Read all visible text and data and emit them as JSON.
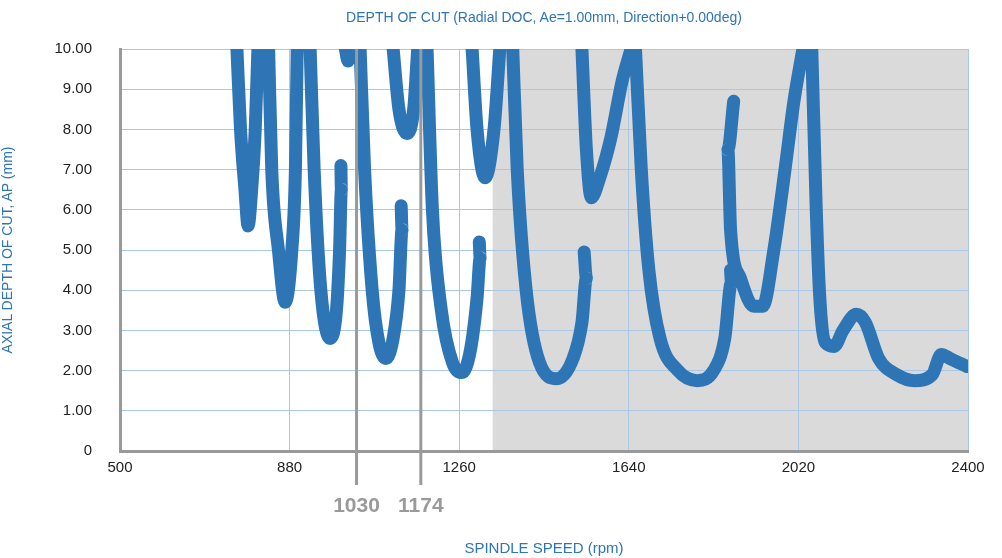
{
  "chart_data": {
    "type": "line",
    "title": "DEPTH OF CUT (Radial DOC, Ae=1.00mm, Direction+0.00deg)",
    "xlabel": "SPINDLE SPEED (rpm)",
    "ylabel": "AXIAL DEPTH OF CUT, AP (mm)",
    "series": [
      {
        "color": "#2e75b6",
        "x": [
          762,
          770,
          780,
          787,
          795,
          803,
          809,
          null,
          833,
          840,
          855,
          870,
          885,
          893,
          897,
          null,
          926,
          935,
          950,
          971,
          985,
          992,
          996,
          995,
          null,
          1005,
          1011,
          1016,
          null,
          1038,
          1048,
          1065,
          1080,
          1096,
          1112,
          1125,
          1132,
          1130,
          null,
          1112,
          1125,
          1143,
          1158,
          1167,
          null,
          1188,
          1200,
          1220,
          1245,
          1266,
          1285,
          1300,
          1307,
          1305,
          null,
          1289,
          1300,
          1318,
          1338,
          1351,
          null,
          1380,
          1390,
          1410,
          1440,
          1479,
          1515,
          1535,
          1545,
          1540,
          null,
          1535,
          1545,
          1556,
          1575,
          1600,
          1625,
          1645,
          null,
          1655,
          1668,
          1685,
          1710,
          1750,
          1793,
          1830,
          1855,
          1870,
          1868,
          null,
          1875,
          1862,
          1868,
          1890,
          1920,
          1940,
          1965,
          1990,
          2010,
          2030,
          null,
          2050,
          2060,
          2068,
          2080,
          2100,
          2120,
          2150,
          2170,
          2200,
          2240,
          2280,
          2320,
          2340,
          2360,
          2398
        ],
        "values": [
          10,
          8,
          6.5,
          5.6,
          6.5,
          8,
          10,
          null,
          10,
          7,
          5,
          3.7,
          5,
          7,
          10,
          null,
          10,
          7,
          4,
          2.8,
          3.5,
          5,
          6.5,
          7.1,
          null,
          10,
          9.7,
          10,
          null,
          10,
          7,
          4,
          2.7,
          2.3,
          2.8,
          4,
          5.5,
          6.1,
          null,
          10,
          8.5,
          7.9,
          8.5,
          10,
          null,
          10,
          6,
          3.5,
          2.2,
          1.95,
          2.5,
          3.8,
          4.8,
          5.2,
          null,
          10,
          8,
          6.8,
          8,
          10,
          null,
          10,
          7,
          4,
          2.2,
          1.8,
          2.3,
          3.2,
          4.3,
          4.95,
          null,
          10,
          7.5,
          6.3,
          6.8,
          7.8,
          9.2,
          10,
          null,
          10,
          7,
          4.5,
          2.8,
          2,
          1.75,
          2,
          2.8,
          4.2,
          4.5,
          null,
          8.7,
          7.5,
          5.5,
          4.3,
          3.6,
          3.6,
          5,
          7,
          8.7,
          10,
          null,
          10,
          6,
          3.8,
          2.7,
          2.6,
          3,
          3.4,
          3.2,
          2.3,
          1.9,
          1.75,
          1.9,
          2.4,
          2.3,
          2.1
        ]
      }
    ],
    "xlim": [
      500,
      2400
    ],
    "xticks": [
      500,
      880,
      1260,
      1640,
      2020,
      2400
    ],
    "ylim": [
      0,
      10
    ],
    "yticks": [
      0,
      {
        "value": 1,
        "label": "1.00"
      },
      {
        "value": 2,
        "label": "2.00"
      },
      {
        "value": 3,
        "label": "3.00"
      },
      {
        "value": 4,
        "label": "4.00"
      },
      {
        "value": 5,
        "label": "5.00"
      },
      {
        "value": 6,
        "label": "6.00"
      },
      {
        "value": 7,
        "label": "7.00"
      },
      {
        "value": 8,
        "label": "8.00"
      },
      {
        "value": 9,
        "label": "9.00"
      },
      {
        "value": 10,
        "label": "10.00"
      }
    ],
    "grid": true,
    "legend": false,
    "bands": [
      {
        "axis": "x",
        "from": 1335,
        "to": 2400,
        "color": "#dadada"
      }
    ],
    "ref_lines": [
      {
        "axis": "x",
        "value": 1030,
        "label": "1030",
        "color": "#9a9a9a"
      },
      {
        "axis": "x",
        "value": 1174,
        "label": "1174",
        "color": "#9a9a9a"
      }
    ]
  }
}
